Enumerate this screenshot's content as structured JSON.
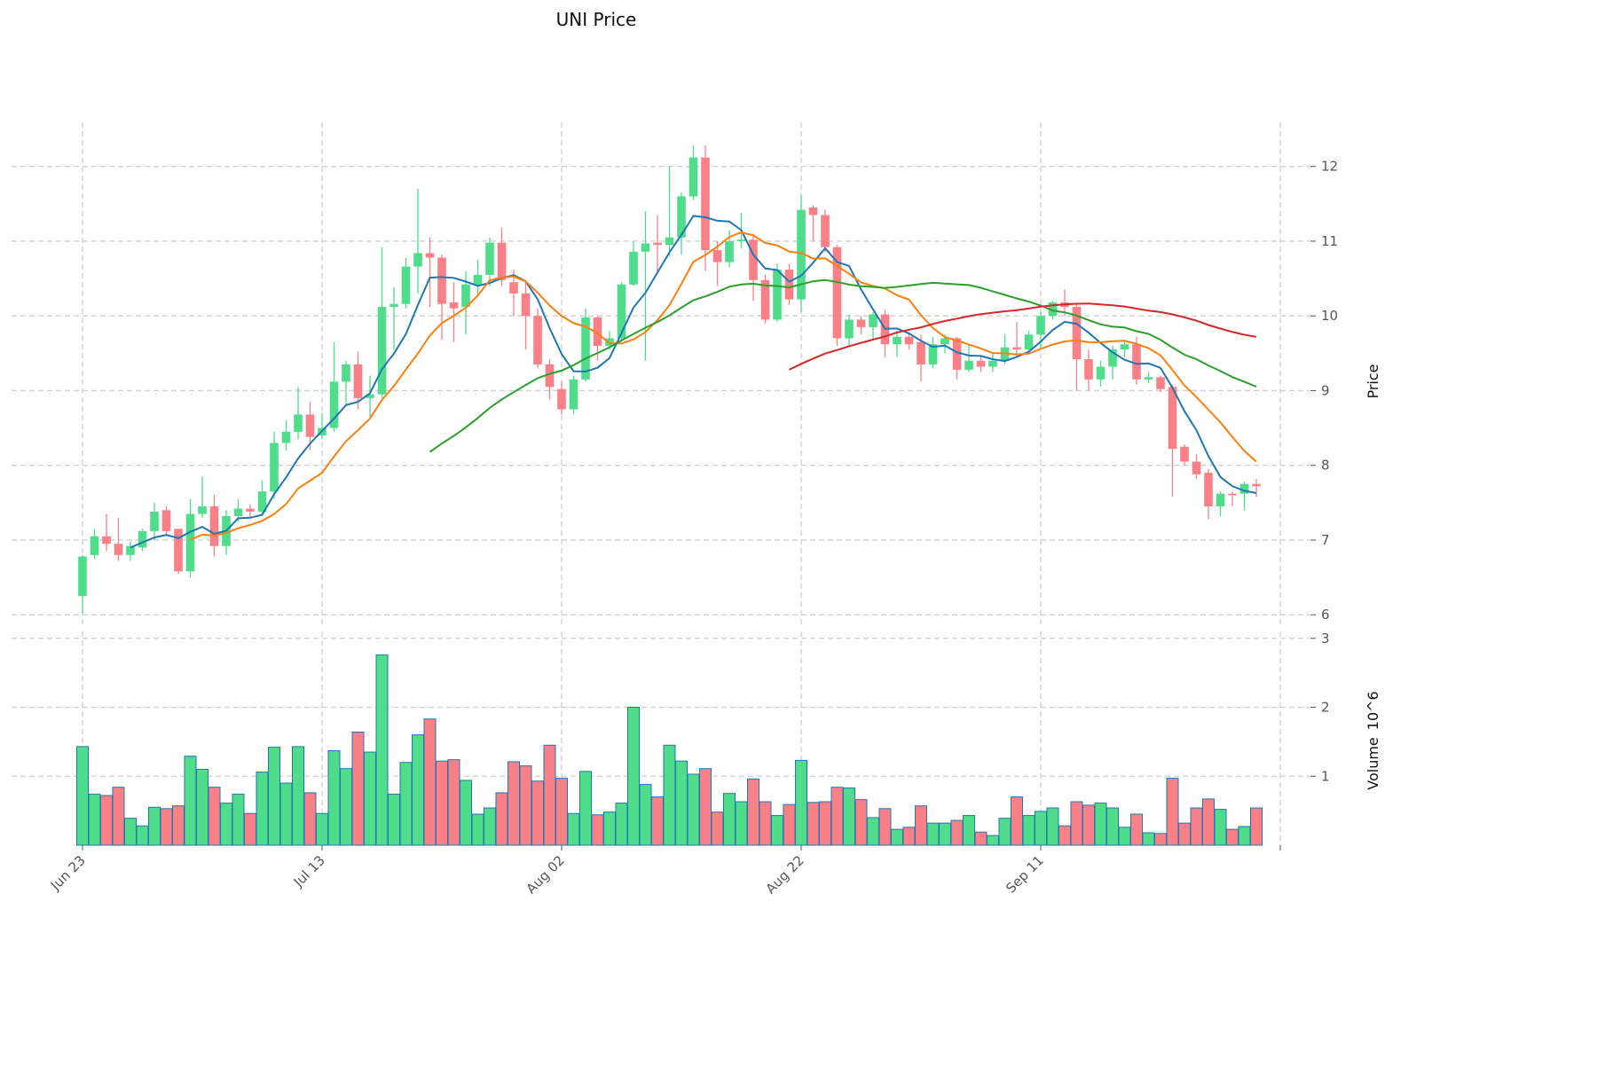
{
  "chart_data": {
    "type": "candlestick",
    "title": "UNI Price",
    "ylabel_price": "Price",
    "ylabel_volume": "Volume",
    "volume_unit": "10^6",
    "volume_unit_base": "10",
    "volume_unit_exp": "6",
    "price_ylim": [
      5.86,
      12.59
    ],
    "volume_ylim": [
      0,
      3.1
    ],
    "price_ticks": [
      "6",
      "7",
      "8",
      "9",
      "10",
      "11",
      "12"
    ],
    "volume_ticks": [
      "1",
      "2",
      "3"
    ],
    "x_tick_labels": [
      "Jun 23",
      "Jul 13",
      "Aug 02",
      "Aug 22",
      "Sep 11"
    ],
    "x_tick_index_step": 20,
    "grid": true,
    "colors": {
      "up": "#4fdd8c",
      "down": "#fa8088",
      "volume_edge": "#1f77b4",
      "ma5": "#1f77b4",
      "ma10": "#ff7f0e",
      "ma30": "#2ca02c",
      "ma60": "#d62728",
      "grid": "#cfcfcf"
    },
    "moving_averages": [
      5,
      10,
      30,
      60
    ],
    "ohlc": [
      [
        6.25,
        6.8,
        6.02,
        6.78
      ],
      [
        6.8,
        7.15,
        6.75,
        7.05
      ],
      [
        7.05,
        7.35,
        6.85,
        6.95
      ],
      [
        6.95,
        7.3,
        6.72,
        6.8
      ],
      [
        6.8,
        6.98,
        6.72,
        6.92
      ],
      [
        6.9,
        7.15,
        6.85,
        7.12
      ],
      [
        7.12,
        7.5,
        7.0,
        7.38
      ],
      [
        7.4,
        7.45,
        7.05,
        7.12
      ],
      [
        7.15,
        7.15,
        6.55,
        6.58
      ],
      [
        6.58,
        7.55,
        6.5,
        7.35
      ],
      [
        7.35,
        7.85,
        7.3,
        7.45
      ],
      [
        7.45,
        7.6,
        6.78,
        6.92
      ],
      [
        6.92,
        7.4,
        6.8,
        7.32
      ],
      [
        7.32,
        7.55,
        7.25,
        7.42
      ],
      [
        7.42,
        7.48,
        7.3,
        7.38
      ],
      [
        7.38,
        7.8,
        7.35,
        7.65
      ],
      [
        7.65,
        8.45,
        7.55,
        8.3
      ],
      [
        8.3,
        8.6,
        8.2,
        8.45
      ],
      [
        8.45,
        9.05,
        8.35,
        8.68
      ],
      [
        8.68,
        8.85,
        8.2,
        8.38
      ],
      [
        8.4,
        8.7,
        8.35,
        8.5
      ],
      [
        8.5,
        9.65,
        8.45,
        9.12
      ],
      [
        9.12,
        9.4,
        8.8,
        9.35
      ],
      [
        9.35,
        9.52,
        8.75,
        8.9
      ],
      [
        8.9,
        9.2,
        8.65,
        8.95
      ],
      [
        8.95,
        10.92,
        8.9,
        10.12
      ],
      [
        10.12,
        10.38,
        9.55,
        10.16
      ],
      [
        10.16,
        10.78,
        10.1,
        10.66
      ],
      [
        10.66,
        11.7,
        10.3,
        10.84
      ],
      [
        10.84,
        11.05,
        10.12,
        10.78
      ],
      [
        10.78,
        10.82,
        9.68,
        10.16
      ],
      [
        10.18,
        10.45,
        9.65,
        10.1
      ],
      [
        10.12,
        10.6,
        9.75,
        10.42
      ],
      [
        10.42,
        10.75,
        10.3,
        10.55
      ],
      [
        10.55,
        11.05,
        10.4,
        10.98
      ],
      [
        10.98,
        11.18,
        10.4,
        10.48
      ],
      [
        10.45,
        10.62,
        10.0,
        10.3
      ],
      [
        10.3,
        10.48,
        9.55,
        10.0
      ],
      [
        10.0,
        10.1,
        9.3,
        9.35
      ],
      [
        9.35,
        9.42,
        8.88,
        9.05
      ],
      [
        9.02,
        9.12,
        8.68,
        8.75
      ],
      [
        8.75,
        9.2,
        8.68,
        9.15
      ],
      [
        9.15,
        10.1,
        9.12,
        9.98
      ],
      [
        9.98,
        10.0,
        9.4,
        9.6
      ],
      [
        9.6,
        9.8,
        9.55,
        9.7
      ],
      [
        9.7,
        10.45,
        9.65,
        10.42
      ],
      [
        10.42,
        11.0,
        10.4,
        10.86
      ],
      [
        10.86,
        11.4,
        9.4,
        10.97
      ],
      [
        10.98,
        11.35,
        10.55,
        10.95
      ],
      [
        10.95,
        12.0,
        10.8,
        11.05
      ],
      [
        11.05,
        11.65,
        10.82,
        11.6
      ],
      [
        11.6,
        12.28,
        11.55,
        12.12
      ],
      [
        12.12,
        12.28,
        10.6,
        10.88
      ],
      [
        10.88,
        11.0,
        10.4,
        10.72
      ],
      [
        10.72,
        11.15,
        10.65,
        11.0
      ],
      [
        11.0,
        11.38,
        10.9,
        11.02
      ],
      [
        11.02,
        11.1,
        10.2,
        10.48
      ],
      [
        10.48,
        10.55,
        9.9,
        9.95
      ],
      [
        9.95,
        10.7,
        9.92,
        10.62
      ],
      [
        10.62,
        10.7,
        10.15,
        10.22
      ],
      [
        10.22,
        11.62,
        10.05,
        11.42
      ],
      [
        11.45,
        11.48,
        11.0,
        11.35
      ],
      [
        11.35,
        11.42,
        10.85,
        10.92
      ],
      [
        10.92,
        10.95,
        9.6,
        9.7
      ],
      [
        9.7,
        10.02,
        9.6,
        9.95
      ],
      [
        9.95,
        10.0,
        9.75,
        9.85
      ],
      [
        9.85,
        10.05,
        9.7,
        10.02
      ],
      [
        10.02,
        10.08,
        9.45,
        9.62
      ],
      [
        9.62,
        9.8,
        9.45,
        9.72
      ],
      [
        9.72,
        9.78,
        9.55,
        9.62
      ],
      [
        9.65,
        9.75,
        9.12,
        9.35
      ],
      [
        9.35,
        9.72,
        9.3,
        9.62
      ],
      [
        9.62,
        9.75,
        9.5,
        9.7
      ],
      [
        9.7,
        9.72,
        9.15,
        9.28
      ],
      [
        9.28,
        9.62,
        9.25,
        9.4
      ],
      [
        9.4,
        9.48,
        9.25,
        9.32
      ],
      [
        9.32,
        9.5,
        9.25,
        9.4
      ],
      [
        9.4,
        9.75,
        9.35,
        9.58
      ],
      [
        9.58,
        9.92,
        9.45,
        9.55
      ],
      [
        9.55,
        9.8,
        9.5,
        9.75
      ],
      [
        9.75,
        10.05,
        9.55,
        10.0
      ],
      [
        10.0,
        10.2,
        9.95,
        10.18
      ],
      [
        10.18,
        10.35,
        10.0,
        10.12
      ],
      [
        10.12,
        10.15,
        9.0,
        9.42
      ],
      [
        9.42,
        9.55,
        9.0,
        9.15
      ],
      [
        9.15,
        9.4,
        9.05,
        9.32
      ],
      [
        9.32,
        9.6,
        9.15,
        9.55
      ],
      [
        9.55,
        9.68,
        9.45,
        9.62
      ],
      [
        9.62,
        9.72,
        9.08,
        9.15
      ],
      [
        9.15,
        9.25,
        9.1,
        9.18
      ],
      [
        9.18,
        9.2,
        8.98,
        9.02
      ],
      [
        9.05,
        9.08,
        7.58,
        8.22
      ],
      [
        8.25,
        8.28,
        8.0,
        8.05
      ],
      [
        8.05,
        8.15,
        7.82,
        7.88
      ],
      [
        7.9,
        7.95,
        7.28,
        7.45
      ],
      [
        7.45,
        7.65,
        7.32,
        7.62
      ],
      [
        7.62,
        7.65,
        7.45,
        7.6
      ],
      [
        7.62,
        7.78,
        7.4,
        7.75
      ],
      [
        7.75,
        7.82,
        7.58,
        7.72
      ]
    ],
    "volume_millions": [
      1.43,
      0.74,
      0.72,
      0.84,
      0.39,
      0.28,
      0.55,
      0.53,
      0.57,
      1.29,
      1.1,
      0.84,
      0.61,
      0.74,
      0.46,
      1.06,
      1.42,
      0.9,
      1.43,
      0.76,
      0.46,
      1.37,
      1.11,
      1.64,
      1.35,
      2.76,
      0.74,
      1.2,
      1.6,
      1.83,
      1.22,
      1.24,
      0.94,
      0.45,
      0.54,
      0.76,
      1.21,
      1.15,
      0.93,
      1.45,
      0.97,
      0.46,
      1.07,
      0.44,
      0.48,
      0.61,
      2.0,
      0.88,
      0.7,
      1.45,
      1.22,
      1.03,
      1.11,
      0.48,
      0.75,
      0.63,
      0.96,
      0.63,
      0.43,
      0.59,
      1.23,
      0.62,
      0.63,
      0.84,
      0.83,
      0.66,
      0.4,
      0.53,
      0.23,
      0.26,
      0.57,
      0.32,
      0.32,
      0.36,
      0.43,
      0.19,
      0.14,
      0.39,
      0.7,
      0.43,
      0.49,
      0.54,
      0.28,
      0.63,
      0.58,
      0.61,
      0.54,
      0.26,
      0.45,
      0.18,
      0.17,
      0.97,
      0.32,
      0.54,
      0.67,
      0.52,
      0.23,
      0.27,
      0.54
    ]
  }
}
